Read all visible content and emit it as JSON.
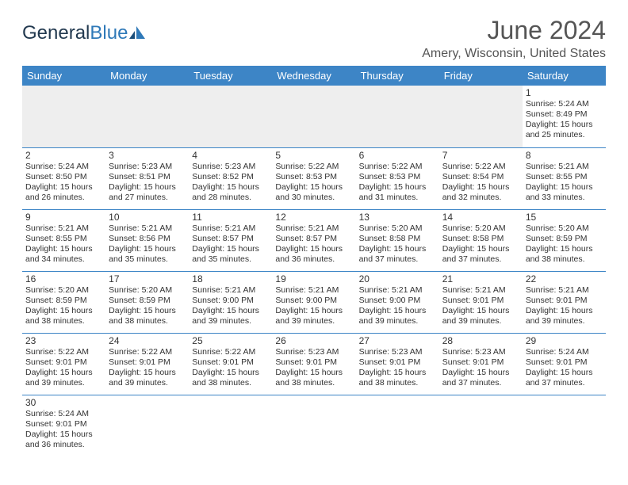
{
  "logo": {
    "part1": "General",
    "part2": "Blue",
    "icon_color": "#2f79b8"
  },
  "title": "June 2024",
  "location": "Amery, Wisconsin, United States",
  "header_bg": "#3d85c6",
  "day_headers": [
    "Sunday",
    "Monday",
    "Tuesday",
    "Wednesday",
    "Thursday",
    "Friday",
    "Saturday"
  ],
  "weeks": [
    [
      null,
      null,
      null,
      null,
      null,
      null,
      {
        "n": "1",
        "sr": "Sunrise: 5:24 AM",
        "ss": "Sunset: 8:49 PM",
        "d1": "Daylight: 15 hours",
        "d2": "and 25 minutes."
      }
    ],
    [
      {
        "n": "2",
        "sr": "Sunrise: 5:24 AM",
        "ss": "Sunset: 8:50 PM",
        "d1": "Daylight: 15 hours",
        "d2": "and 26 minutes."
      },
      {
        "n": "3",
        "sr": "Sunrise: 5:23 AM",
        "ss": "Sunset: 8:51 PM",
        "d1": "Daylight: 15 hours",
        "d2": "and 27 minutes."
      },
      {
        "n": "4",
        "sr": "Sunrise: 5:23 AM",
        "ss": "Sunset: 8:52 PM",
        "d1": "Daylight: 15 hours",
        "d2": "and 28 minutes."
      },
      {
        "n": "5",
        "sr": "Sunrise: 5:22 AM",
        "ss": "Sunset: 8:53 PM",
        "d1": "Daylight: 15 hours",
        "d2": "and 30 minutes."
      },
      {
        "n": "6",
        "sr": "Sunrise: 5:22 AM",
        "ss": "Sunset: 8:53 PM",
        "d1": "Daylight: 15 hours",
        "d2": "and 31 minutes."
      },
      {
        "n": "7",
        "sr": "Sunrise: 5:22 AM",
        "ss": "Sunset: 8:54 PM",
        "d1": "Daylight: 15 hours",
        "d2": "and 32 minutes."
      },
      {
        "n": "8",
        "sr": "Sunrise: 5:21 AM",
        "ss": "Sunset: 8:55 PM",
        "d1": "Daylight: 15 hours",
        "d2": "and 33 minutes."
      }
    ],
    [
      {
        "n": "9",
        "sr": "Sunrise: 5:21 AM",
        "ss": "Sunset: 8:55 PM",
        "d1": "Daylight: 15 hours",
        "d2": "and 34 minutes."
      },
      {
        "n": "10",
        "sr": "Sunrise: 5:21 AM",
        "ss": "Sunset: 8:56 PM",
        "d1": "Daylight: 15 hours",
        "d2": "and 35 minutes."
      },
      {
        "n": "11",
        "sr": "Sunrise: 5:21 AM",
        "ss": "Sunset: 8:57 PM",
        "d1": "Daylight: 15 hours",
        "d2": "and 35 minutes."
      },
      {
        "n": "12",
        "sr": "Sunrise: 5:21 AM",
        "ss": "Sunset: 8:57 PM",
        "d1": "Daylight: 15 hours",
        "d2": "and 36 minutes."
      },
      {
        "n": "13",
        "sr": "Sunrise: 5:20 AM",
        "ss": "Sunset: 8:58 PM",
        "d1": "Daylight: 15 hours",
        "d2": "and 37 minutes."
      },
      {
        "n": "14",
        "sr": "Sunrise: 5:20 AM",
        "ss": "Sunset: 8:58 PM",
        "d1": "Daylight: 15 hours",
        "d2": "and 37 minutes."
      },
      {
        "n": "15",
        "sr": "Sunrise: 5:20 AM",
        "ss": "Sunset: 8:59 PM",
        "d1": "Daylight: 15 hours",
        "d2": "and 38 minutes."
      }
    ],
    [
      {
        "n": "16",
        "sr": "Sunrise: 5:20 AM",
        "ss": "Sunset: 8:59 PM",
        "d1": "Daylight: 15 hours",
        "d2": "and 38 minutes."
      },
      {
        "n": "17",
        "sr": "Sunrise: 5:20 AM",
        "ss": "Sunset: 8:59 PM",
        "d1": "Daylight: 15 hours",
        "d2": "and 38 minutes."
      },
      {
        "n": "18",
        "sr": "Sunrise: 5:21 AM",
        "ss": "Sunset: 9:00 PM",
        "d1": "Daylight: 15 hours",
        "d2": "and 39 minutes."
      },
      {
        "n": "19",
        "sr": "Sunrise: 5:21 AM",
        "ss": "Sunset: 9:00 PM",
        "d1": "Daylight: 15 hours",
        "d2": "and 39 minutes."
      },
      {
        "n": "20",
        "sr": "Sunrise: 5:21 AM",
        "ss": "Sunset: 9:00 PM",
        "d1": "Daylight: 15 hours",
        "d2": "and 39 minutes."
      },
      {
        "n": "21",
        "sr": "Sunrise: 5:21 AM",
        "ss": "Sunset: 9:01 PM",
        "d1": "Daylight: 15 hours",
        "d2": "and 39 minutes."
      },
      {
        "n": "22",
        "sr": "Sunrise: 5:21 AM",
        "ss": "Sunset: 9:01 PM",
        "d1": "Daylight: 15 hours",
        "d2": "and 39 minutes."
      }
    ],
    [
      {
        "n": "23",
        "sr": "Sunrise: 5:22 AM",
        "ss": "Sunset: 9:01 PM",
        "d1": "Daylight: 15 hours",
        "d2": "and 39 minutes."
      },
      {
        "n": "24",
        "sr": "Sunrise: 5:22 AM",
        "ss": "Sunset: 9:01 PM",
        "d1": "Daylight: 15 hours",
        "d2": "and 39 minutes."
      },
      {
        "n": "25",
        "sr": "Sunrise: 5:22 AM",
        "ss": "Sunset: 9:01 PM",
        "d1": "Daylight: 15 hours",
        "d2": "and 38 minutes."
      },
      {
        "n": "26",
        "sr": "Sunrise: 5:23 AM",
        "ss": "Sunset: 9:01 PM",
        "d1": "Daylight: 15 hours",
        "d2": "and 38 minutes."
      },
      {
        "n": "27",
        "sr": "Sunrise: 5:23 AM",
        "ss": "Sunset: 9:01 PM",
        "d1": "Daylight: 15 hours",
        "d2": "and 38 minutes."
      },
      {
        "n": "28",
        "sr": "Sunrise: 5:23 AM",
        "ss": "Sunset: 9:01 PM",
        "d1": "Daylight: 15 hours",
        "d2": "and 37 minutes."
      },
      {
        "n": "29",
        "sr": "Sunrise: 5:24 AM",
        "ss": "Sunset: 9:01 PM",
        "d1": "Daylight: 15 hours",
        "d2": "and 37 minutes."
      }
    ],
    [
      {
        "n": "30",
        "sr": "Sunrise: 5:24 AM",
        "ss": "Sunset: 9:01 PM",
        "d1": "Daylight: 15 hours",
        "d2": "and 36 minutes."
      },
      null,
      null,
      null,
      null,
      null,
      null
    ]
  ]
}
